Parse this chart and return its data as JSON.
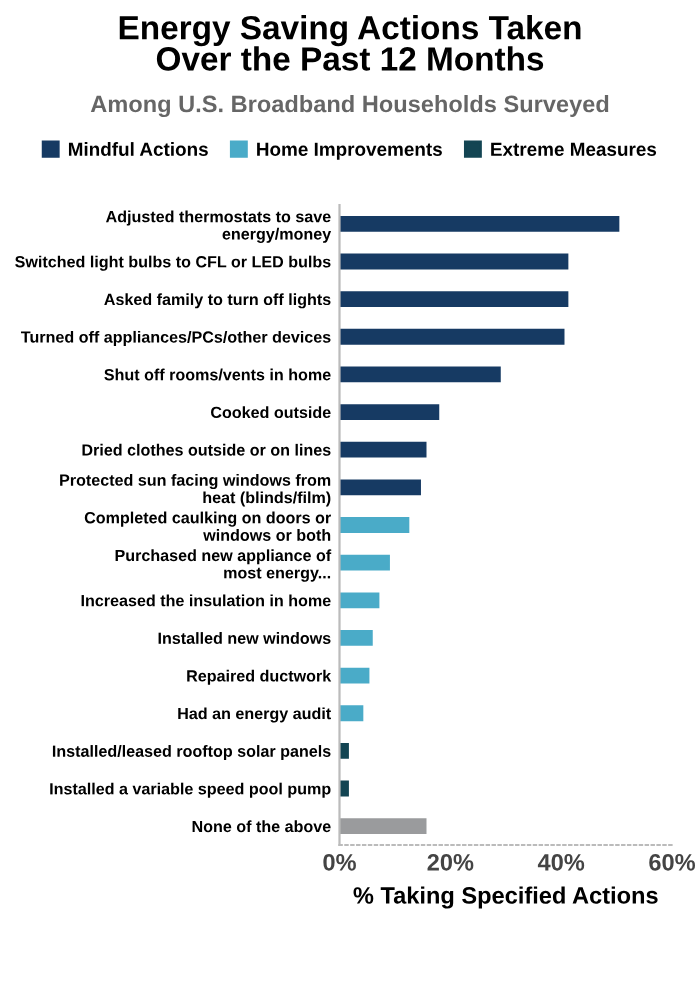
{
  "chart_data": {
    "type": "bar",
    "orientation": "horizontal",
    "title": "Energy Saving Actions Taken\nOver the Past 12 Months",
    "subtitle": "Among U.S. Broadband Households Surveyed",
    "xlabel": "% Taking Specified Actions",
    "categories": [
      "Adjusted thermostats to save\nenergy/money",
      "Switched light bulbs to CFL or LED bulbs",
      "Asked family to turn off lights",
      "Turned off appliances/PCs/other devices",
      "Shut off rooms/vents in home",
      "Cooked outside",
      "Dried clothes outside or on lines",
      "Protected sun facing windows from\nheat (blinds/film)",
      "Completed caulking on doors or\nwindows or both",
      "Purchased new appliance of\nmost energy...",
      "Increased the insulation in home",
      "Installed new windows",
      "Repaired ductwork",
      "Had an energy audit",
      "Installed/leased rooftop solar panels",
      "Installed a variable speed pool pump",
      "None of the above"
    ],
    "series": [
      {
        "name": "Mindful Actions",
        "color": "#163a63",
        "values": [
          50.5,
          41.3,
          41.3,
          40.6,
          29.1,
          18.0,
          15.7,
          14.7,
          null,
          null,
          null,
          null,
          null,
          null,
          null,
          null,
          null
        ]
      },
      {
        "name": "Home Improvements",
        "color": "#4aabc8",
        "values": [
          null,
          null,
          null,
          null,
          null,
          null,
          null,
          null,
          12.6,
          9.1,
          7.2,
          6.0,
          5.4,
          4.3,
          null,
          null,
          null
        ]
      },
      {
        "name": "Extreme Measures",
        "color": "#134553",
        "values": [
          null,
          null,
          null,
          null,
          null,
          null,
          null,
          null,
          null,
          null,
          null,
          null,
          null,
          null,
          1.7,
          1.7,
          null
        ]
      },
      {
        "color": "#9a9b9d",
        "values": [
          null,
          null,
          null,
          null,
          null,
          null,
          null,
          null,
          null,
          null,
          null,
          null,
          null,
          null,
          null,
          null,
          15.7
        ]
      }
    ],
    "xlim": [
      0,
      60
    ],
    "xticks": [
      {
        "value": 0,
        "label": "0%"
      },
      {
        "value": 20,
        "label": "20%"
      },
      {
        "value": 40,
        "label": "40%"
      },
      {
        "value": 60,
        "label": "60%"
      }
    ],
    "legend": "top",
    "grid": false
  }
}
